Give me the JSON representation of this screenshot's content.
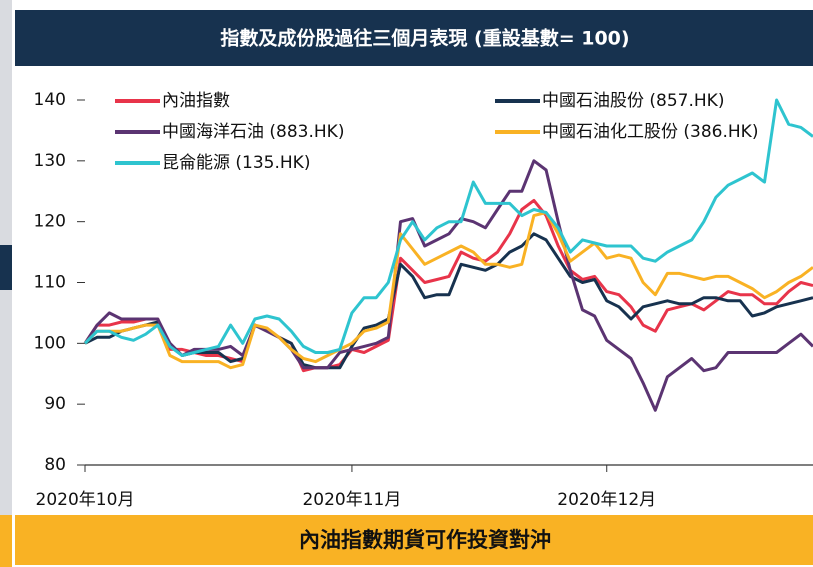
{
  "chart_data": {
    "type": "line",
    "title": "指數及成份股過往三個月表現 (重設基數= 100)",
    "banner": "內油指數期貨可作投資對沖",
    "categories": [
      "2020年10月",
      null,
      null,
      null,
      null,
      null,
      null,
      null,
      null,
      null,
      null,
      null,
      null,
      null,
      null,
      null,
      null,
      null,
      null,
      null,
      null,
      null,
      "2020年11月",
      null,
      null,
      null,
      null,
      null,
      null,
      null,
      null,
      null,
      null,
      null,
      null,
      null,
      null,
      null,
      null,
      null,
      null,
      null,
      null,
      "2020年12月",
      null,
      null,
      null,
      null,
      null,
      null,
      null,
      null,
      null,
      null,
      null,
      null,
      null,
      null,
      null,
      null,
      null
    ],
    "ylim": [
      80,
      140
    ],
    "yticks": [
      80,
      90,
      100,
      110,
      120,
      130,
      140
    ],
    "series": [
      {
        "name": "內油指數",
        "color": "#e8344a",
        "values": [
          100,
          103,
          103,
          103.5,
          103.5,
          104,
          104,
          99,
          99,
          98.5,
          98,
          98,
          97.5,
          97,
          103,
          102,
          101,
          100,
          95.5,
          96,
          96,
          96.5,
          99,
          98.5,
          99.5,
          100.5,
          114,
          112,
          110,
          110.5,
          111,
          115,
          114,
          113.5,
          115,
          118,
          122,
          123.5,
          121,
          116,
          112,
          110.5,
          111,
          108.5,
          108,
          106,
          103,
          102,
          105.5,
          106,
          106.5,
          105.5,
          107,
          108.5,
          108,
          108,
          106.5,
          106.5,
          108.5,
          110,
          109.5
        ]
      },
      {
        "name": "中國石油股份 (857.HK)",
        "color": "#17324f",
        "values": [
          100,
          101,
          101,
          102,
          102.5,
          103,
          103.5,
          100,
          98,
          98.5,
          98.5,
          98.5,
          97,
          97.5,
          103,
          102,
          101,
          100,
          96.5,
          96,
          96,
          96,
          99.5,
          102.5,
          103,
          104,
          113,
          111,
          107.5,
          108,
          108,
          113,
          112.5,
          112,
          113,
          115,
          116,
          118,
          117,
          114,
          111,
          110,
          110.5,
          107,
          106,
          104,
          106,
          106.5,
          107,
          106.5,
          106.5,
          107.5,
          107.5,
          107,
          107,
          104.5,
          105,
          106,
          106.5,
          107,
          107.5
        ]
      },
      {
        "name": "中國海洋石油 (883.HK)",
        "color": "#5b3472",
        "values": [
          100,
          103,
          105,
          104,
          104,
          104,
          104,
          100,
          98,
          99,
          99,
          99,
          99.5,
          98,
          103,
          102,
          101,
          99,
          96,
          96,
          96,
          98.5,
          99,
          99.5,
          100,
          101,
          120,
          120.5,
          116,
          117,
          118,
          120.5,
          120,
          119,
          122,
          125,
          125,
          130,
          128.5,
          120,
          112,
          105.5,
          104.5,
          100.5,
          99,
          97.5,
          93.5,
          89,
          94.5,
          96,
          97.5,
          95.5,
          96,
          98.5,
          98.5,
          98.5,
          98.5,
          98.5,
          100,
          101.5,
          99.5
        ]
      },
      {
        "name": "中國石油化工股份 (386.HK)",
        "color": "#f9b224",
        "values": [
          100,
          102,
          102,
          102,
          102.5,
          103,
          103,
          98,
          97,
          97,
          97,
          97,
          96,
          96.5,
          103,
          102.5,
          101,
          99,
          97.5,
          97,
          98,
          99,
          100,
          102,
          102.5,
          103.5,
          118,
          115.5,
          113,
          114,
          115,
          116,
          115,
          113,
          113,
          112.5,
          113,
          121,
          121.5,
          118,
          113.5,
          115,
          116.5,
          114,
          114.5,
          114,
          110,
          108,
          111.5,
          111.5,
          111,
          110.5,
          111,
          111,
          110,
          109,
          107.5,
          108.5,
          110,
          111,
          112.5
        ]
      },
      {
        "name": "昆侖能源 (135.HK)",
        "color": "#2ec4cf",
        "values": [
          100,
          102,
          102,
          101,
          100.5,
          101.5,
          103,
          99.5,
          98,
          98.5,
          99,
          99.5,
          103,
          100,
          104,
          104.5,
          104,
          102,
          99.5,
          98.5,
          98.5,
          99,
          105,
          107.5,
          107.5,
          110,
          117,
          120,
          117,
          119,
          120,
          120,
          126.5,
          123,
          123,
          123,
          121,
          122,
          121.5,
          119,
          115,
          117,
          116.5,
          116,
          116,
          116,
          114,
          113.5,
          115,
          116,
          117,
          120,
          124,
          126,
          127,
          128,
          126.5,
          140,
          136,
          135.5,
          134
        ]
      }
    ]
  }
}
